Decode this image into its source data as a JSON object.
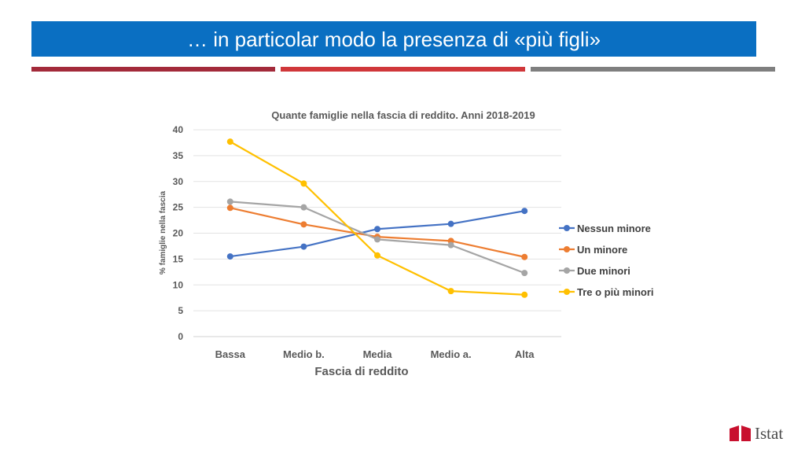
{
  "slide": {
    "title": "… in particolar modo la presenza di «più figli»",
    "title_bar_color": "#0a6fc2",
    "rule_colors": [
      "#a32a3a",
      "#d0373a",
      "#7f7f7f"
    ],
    "logo_text": "Istat",
    "logo_color": "#c8102e"
  },
  "chart_data": {
    "type": "line",
    "title": "Quante famiglie nella fascia di reddito. Anni 2018-2019",
    "xlabel": "Fascia di reddito",
    "ylabel": "% famiglie  nella fascia",
    "categories": [
      "Bassa",
      "Medio b.",
      "Media",
      "Medio a.",
      "Alta"
    ],
    "ylim": [
      0,
      40
    ],
    "yticks": [
      0,
      5,
      10,
      15,
      20,
      25,
      30,
      35,
      40
    ],
    "grid": true,
    "legend_position": "right",
    "series": [
      {
        "name": "Nessun minore",
        "color": "#4472c4",
        "values": [
          15.5,
          17.4,
          20.8,
          21.8,
          24.3
        ]
      },
      {
        "name": "Un minore",
        "color": "#ed7d31",
        "values": [
          24.9,
          21.7,
          19.3,
          18.5,
          15.4
        ]
      },
      {
        "name": "Due minori",
        "color": "#a5a5a5",
        "values": [
          26.1,
          25.0,
          18.8,
          17.7,
          12.3
        ]
      },
      {
        "name": "Tre o più minori",
        "color": "#ffc000",
        "values": [
          37.7,
          29.6,
          15.7,
          8.8,
          8.1
        ]
      }
    ]
  }
}
